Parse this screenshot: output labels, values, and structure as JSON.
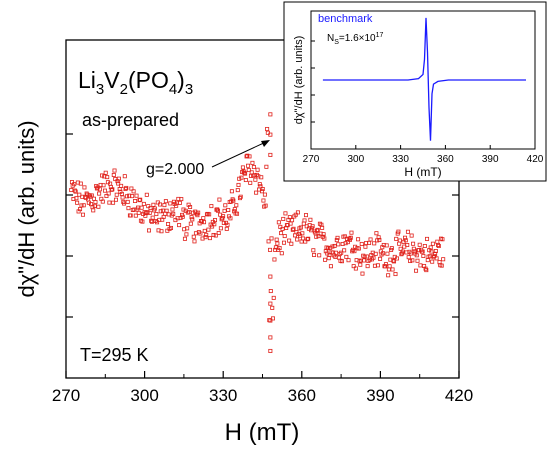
{
  "chart_data": [
    {
      "type": "scatter",
      "title": "",
      "xlabel": "H (mT)",
      "ylabel": "dχ\"/dH (arb. units)",
      "xlim": [
        270,
        420
      ],
      "x_ticks": [
        "270",
        "300",
        "330",
        "360",
        "390",
        "420"
      ],
      "y_ticks_labeled": false,
      "grid": false,
      "series_color": "#e0201a",
      "marker": "open-square",
      "annotations": {
        "compound_parts": [
          "Li",
          "3",
          "V",
          "2",
          "(PO",
          "4",
          ")",
          "3"
        ],
        "state": "as-prepared",
        "g_value": "g=2.000",
        "g_position_mT": 348,
        "temperature": "T=295 K"
      },
      "x_range_data": [
        272,
        414
      ],
      "series": [
        {
          "x": [
            272,
            276,
            280,
            284,
            288,
            292,
            296,
            300,
            304,
            308,
            312,
            316,
            320,
            324,
            328,
            332,
            336,
            338,
            340,
            342,
            344,
            346,
            347,
            348,
            349,
            350,
            352,
            356,
            360,
            364,
            368,
            372,
            376,
            380,
            384,
            388,
            392,
            396,
            400,
            404,
            408,
            412,
            414
          ],
          "y": [
            0.55,
            0.52,
            0.53,
            0.56,
            0.57,
            0.55,
            0.52,
            0.49,
            0.47,
            0.48,
            0.5,
            0.46,
            0.45,
            0.47,
            0.48,
            0.47,
            0.55,
            0.6,
            0.63,
            0.61,
            0.58,
            0.52,
            0.6,
            0.12,
            0.22,
            0.4,
            0.42,
            0.43,
            0.44,
            0.42,
            0.4,
            0.38,
            0.4,
            0.39,
            0.36,
            0.38,
            0.36,
            0.37,
            0.38,
            0.37,
            0.36,
            0.37,
            0.38
          ]
        }
      ]
    },
    {
      "type": "line",
      "title": "",
      "xlabel": "H (mT)",
      "ylabel": "dχ\"/dH (arb. units)",
      "xlim": [
        270,
        420
      ],
      "x_ticks": [
        "270",
        "300",
        "330",
        "360",
        "390",
        "420"
      ],
      "y_ticks_labeled": false,
      "series_color": "#1a1aff",
      "annotations": {
        "sample_label": "benchmark",
        "ns_prefix": "N",
        "ns_sub": "S",
        "ns_value": "=1.6×10",
        "ns_exp": "17"
      },
      "series": [
        {
          "name": "benchmark",
          "x": [
            278,
            300,
            320,
            335,
            342,
            345,
            346,
            347,
            348,
            349,
            350,
            351,
            352,
            355,
            362,
            380,
            400,
            414
          ],
          "y": [
            0.5,
            0.5,
            0.5,
            0.5,
            0.51,
            0.54,
            0.65,
            0.95,
            0.7,
            0.3,
            0.06,
            0.4,
            0.47,
            0.49,
            0.5,
            0.5,
            0.5,
            0.5
          ]
        }
      ]
    }
  ]
}
